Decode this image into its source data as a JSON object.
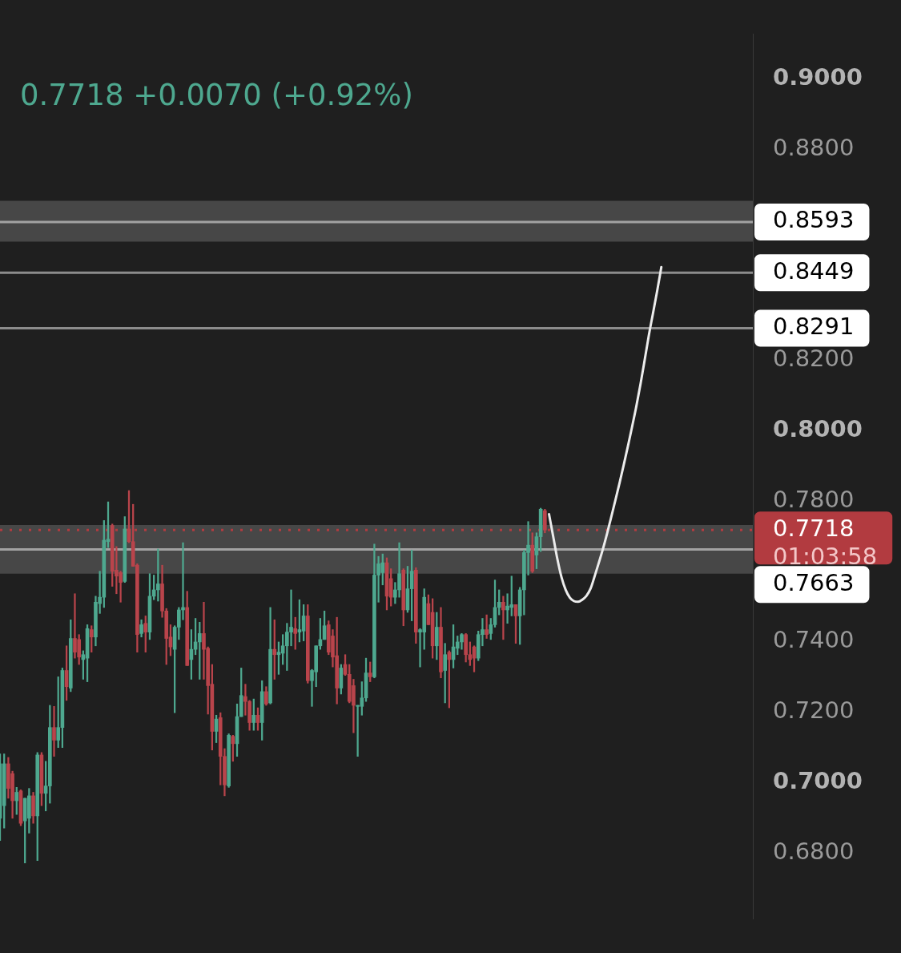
{
  "chart_data": {
    "type": "candlestick",
    "subtitle": "0.7718 +0.0070 (+0.92%)",
    "categories": [
      null,
      null,
      null,
      null,
      null,
      null,
      null,
      null,
      null,
      null,
      null,
      null,
      null,
      null,
      null,
      null,
      null,
      null,
      null,
      null,
      null,
      null,
      null,
      null,
      null,
      null,
      null,
      null,
      null,
      null,
      null,
      null,
      null,
      null,
      null,
      null,
      null,
      null,
      null,
      null,
      null,
      null,
      null,
      null,
      null,
      null,
      null,
      null,
      null,
      null,
      null,
      null,
      null,
      null,
      null,
      null,
      null,
      null,
      null,
      null,
      null,
      null,
      null,
      null,
      null,
      null,
      null,
      null,
      null,
      null,
      null,
      null,
      null,
      null,
      null,
      null,
      null,
      null,
      null,
      null,
      null,
      null,
      null,
      null,
      null,
      null,
      null,
      null,
      null,
      null,
      null,
      null,
      null,
      null,
      null,
      null,
      null,
      null,
      null,
      null,
      null,
      null,
      null,
      null,
      null,
      null,
      null,
      null,
      null,
      null,
      null,
      null,
      null,
      null,
      null,
      null,
      null,
      null,
      null,
      null,
      null,
      null,
      null,
      null,
      null,
      null,
      null,
      null,
      null,
      null,
      null,
      null,
      null,
      null,
      null,
      null,
      null,
      null,
      null,
      null,
      null,
      null,
      null,
      null,
      null,
      null,
      null,
      null,
      null,
      null,
      null,
      null,
      null,
      null,
      null,
      null,
      null,
      null,
      null,
      null,
      null,
      null,
      null,
      null,
      null,
      null,
      null,
      null,
      null,
      null,
      null,
      null,
      null,
      null,
      null,
      null,
      null,
      null,
      null,
      null,
      null,
      null
    ],
    "ohlc": [
      [
        0.6899,
        0.7082,
        0.6836,
        0.7054
      ],
      [
        0.6935,
        0.7082,
        0.6871,
        0.7054
      ],
      [
        0.7054,
        0.7072,
        0.6956,
        0.6984
      ],
      [
        0.7026,
        0.7033,
        0.6899,
        0.6949
      ],
      [
        0.6949,
        0.6987,
        0.691,
        0.6973
      ],
      [
        0.6977,
        0.698,
        0.6878,
        0.6885
      ],
      [
        0.6892,
        0.6956,
        0.6772,
        0.6956
      ],
      [
        0.6899,
        0.6984,
        0.6857,
        0.6963
      ],
      [
        0.6963,
        0.6973,
        0.6885,
        0.6906
      ],
      [
        0.6906,
        0.7086,
        0.6779,
        0.7079
      ],
      [
        0.7079,
        0.7086,
        0.6935,
        0.697
      ],
      [
        0.697,
        0.7061,
        0.692,
        0.6991
      ],
      [
        0.6991,
        0.722,
        0.6942,
        0.7157
      ],
      [
        0.7157,
        0.7217,
        0.7075,
        0.7121
      ],
      [
        0.7121,
        0.7301,
        0.71,
        0.7157
      ],
      [
        0.7157,
        0.7326,
        0.71,
        0.7319
      ],
      [
        0.7319,
        0.7389,
        0.7234,
        0.7273
      ],
      [
        0.7269,
        0.7463,
        0.7259,
        0.741
      ],
      [
        0.741,
        0.7537,
        0.7354,
        0.7371
      ],
      [
        0.7407,
        0.7421,
        0.7336,
        0.7357
      ],
      [
        0.735,
        0.7375,
        0.7294,
        0.7364
      ],
      [
        0.7354,
        0.7449,
        0.7287,
        0.7438
      ],
      [
        0.7435,
        0.7446,
        0.7371,
        0.7414
      ],
      [
        0.7414,
        0.753,
        0.7389,
        0.7513
      ],
      [
        0.7509,
        0.7601,
        0.7481,
        0.7527
      ],
      [
        0.7527,
        0.7745,
        0.7498,
        0.7689
      ],
      [
        0.7685,
        0.7798,
        0.7668,
        0.7692
      ],
      [
        0.7731,
        0.7735,
        0.7558,
        0.7601
      ],
      [
        0.7604,
        0.7671,
        0.7537,
        0.7587
      ],
      [
        0.7597,
        0.7601,
        0.7513,
        0.7569
      ],
      [
        0.7572,
        0.7756,
        0.7569,
        0.7721
      ],
      [
        0.7721,
        0.783,
        0.7682,
        0.7685
      ],
      [
        0.7685,
        0.7791,
        0.7615,
        0.7615
      ],
      [
        0.7618,
        0.7622,
        0.7371,
        0.7421
      ],
      [
        0.7424,
        0.7463,
        0.7414,
        0.7449
      ],
      [
        0.7453,
        0.7474,
        0.7371,
        0.7428
      ],
      [
        0.7428,
        0.7594,
        0.7407,
        0.753
      ],
      [
        0.753,
        0.759,
        0.752,
        0.7548
      ],
      [
        0.7548,
        0.7664,
        0.7516,
        0.7565
      ],
      [
        0.7565,
        0.7618,
        0.747,
        0.7488
      ],
      [
        0.7488,
        0.7495,
        0.7336,
        0.741
      ],
      [
        0.7414,
        0.7449,
        0.7361,
        0.7386
      ],
      [
        0.7379,
        0.7446,
        0.7199,
        0.7442
      ],
      [
        0.7442,
        0.7498,
        0.7407,
        0.7491
      ],
      [
        0.7491,
        0.7682,
        0.7463,
        0.7498
      ],
      [
        0.7498,
        0.7544,
        0.7333,
        0.7333
      ],
      [
        0.735,
        0.7435,
        0.7294,
        0.7379
      ],
      [
        0.7379,
        0.7467,
        0.7364,
        0.74
      ],
      [
        0.74,
        0.7456,
        0.7294,
        0.7424
      ],
      [
        0.7424,
        0.7513,
        0.7294,
        0.7379
      ],
      [
        0.7382,
        0.7386,
        0.7195,
        0.7276
      ],
      [
        0.728,
        0.7336,
        0.7093,
        0.7146
      ],
      [
        0.7146,
        0.7192,
        0.7114,
        0.7181
      ],
      [
        0.7185,
        0.7199,
        0.6994,
        0.7075
      ],
      [
        0.7075,
        0.7097,
        0.6963,
        0.6994
      ],
      [
        0.6991,
        0.7139,
        0.6987,
        0.7135
      ],
      [
        0.7132,
        0.7135,
        0.7061,
        0.7111
      ],
      [
        0.7111,
        0.7224,
        0.7075,
        0.7188
      ],
      [
        0.7188,
        0.7326,
        0.7188,
        0.7248
      ],
      [
        0.7245,
        0.728,
        0.7192,
        0.7231
      ],
      [
        0.7231,
        0.7234,
        0.7149,
        0.7171
      ],
      [
        0.7171,
        0.7238,
        0.7149,
        0.7192
      ],
      [
        0.7192,
        0.7213,
        0.7149,
        0.7171
      ],
      [
        0.7171,
        0.729,
        0.7121,
        0.7259
      ],
      [
        0.7259,
        0.7273,
        0.722,
        0.7224
      ],
      [
        0.7227,
        0.7498,
        0.7224,
        0.7379
      ],
      [
        0.7379,
        0.7463,
        0.7294,
        0.7364
      ],
      [
        0.7364,
        0.74,
        0.7308,
        0.7371
      ],
      [
        0.7368,
        0.7421,
        0.7336,
        0.7389
      ],
      [
        0.7389,
        0.7453,
        0.7319,
        0.7428
      ],
      [
        0.7428,
        0.7548,
        0.7389,
        0.7442
      ],
      [
        0.7438,
        0.747,
        0.7379,
        0.7424
      ],
      [
        0.7428,
        0.752,
        0.74,
        0.7435
      ],
      [
        0.7431,
        0.7506,
        0.7403,
        0.7474
      ],
      [
        0.7474,
        0.7506,
        0.7283,
        0.729
      ],
      [
        0.729,
        0.7322,
        0.7217,
        0.7319
      ],
      [
        0.7315,
        0.7389,
        0.7273,
        0.7389
      ],
      [
        0.7389,
        0.7467,
        0.7379,
        0.7407
      ],
      [
        0.7407,
        0.7488,
        0.7407,
        0.7446
      ],
      [
        0.7449,
        0.746,
        0.7364,
        0.7371
      ],
      [
        0.7417,
        0.7435,
        0.7329,
        0.7357
      ],
      [
        0.7361,
        0.747,
        0.7224,
        0.7269
      ],
      [
        0.7269,
        0.7336,
        0.7252,
        0.7326
      ],
      [
        0.7336,
        0.7364,
        0.7305,
        0.7308
      ],
      [
        0.7308,
        0.7336,
        0.7227,
        0.7231
      ],
      [
        0.7276,
        0.7294,
        0.7142,
        0.722
      ],
      [
        0.7217,
        0.722,
        0.7075,
        0.722
      ],
      [
        0.7217,
        0.7287,
        0.7192,
        0.7241
      ],
      [
        0.7241,
        0.7354,
        0.7231,
        0.7312
      ],
      [
        0.7312,
        0.7343,
        0.7287,
        0.7301
      ],
      [
        0.7301,
        0.7678,
        0.7298,
        0.759
      ],
      [
        0.759,
        0.7643,
        0.7513,
        0.7622
      ],
      [
        0.7597,
        0.765,
        0.7562,
        0.7625
      ],
      [
        0.7625,
        0.7639,
        0.7491,
        0.753
      ],
      [
        0.758,
        0.7608,
        0.7502,
        0.7527
      ],
      [
        0.7527,
        0.7569,
        0.7509,
        0.7548
      ],
      [
        0.7548,
        0.7682,
        0.7527,
        0.7594
      ],
      [
        0.7604,
        0.7608,
        0.7446,
        0.7491
      ],
      [
        0.7491,
        0.7615,
        0.7484,
        0.7551
      ],
      [
        0.7551,
        0.7661,
        0.746,
        0.7601
      ],
      [
        0.7604,
        0.7611,
        0.7396,
        0.7428
      ],
      [
        0.7428,
        0.7438,
        0.7329,
        0.7435
      ],
      [
        0.7428,
        0.7551,
        0.7379,
        0.7527
      ],
      [
        0.7509,
        0.7534,
        0.7449,
        0.7449
      ],
      [
        0.7484,
        0.7523,
        0.7354,
        0.7389
      ],
      [
        0.7389,
        0.7484,
        0.735,
        0.7442
      ],
      [
        0.7442,
        0.7498,
        0.7298,
        0.7315
      ],
      [
        0.7319,
        0.7396,
        0.7227,
        0.7364
      ],
      [
        0.7371,
        0.7375,
        0.7213,
        0.735
      ],
      [
        0.735,
        0.7449,
        0.7326,
        0.7386
      ],
      [
        0.7382,
        0.7417,
        0.7364,
        0.74
      ],
      [
        0.74,
        0.7424,
        0.7379,
        0.7421
      ],
      [
        0.7421,
        0.7424,
        0.7343,
        0.7364
      ],
      [
        0.7364,
        0.74,
        0.7333,
        0.735
      ],
      [
        0.7386,
        0.7389,
        0.7315,
        0.7354
      ],
      [
        0.7354,
        0.7431,
        0.7347,
        0.7421
      ],
      [
        0.7421,
        0.7467,
        0.7389,
        0.7435
      ],
      [
        0.7435,
        0.7477,
        0.741,
        0.7421
      ],
      [
        0.7424,
        0.7467,
        0.7407,
        0.7449
      ],
      [
        0.7449,
        0.7576,
        0.7442,
        0.7498
      ],
      [
        0.7498,
        0.7548,
        0.7477,
        0.7513
      ],
      [
        0.7513,
        0.753,
        0.7407,
        0.7491
      ],
      [
        0.7491,
        0.7537,
        0.7453,
        0.7502
      ],
      [
        0.7498,
        0.7587,
        0.7474,
        0.7506
      ],
      [
        0.7506,
        0.7506,
        0.7396,
        0.7474
      ],
      [
        0.7474,
        0.7555,
        0.7393,
        0.7548
      ],
      [
        0.7548,
        0.7661,
        0.7477,
        0.7654
      ],
      [
        0.7654,
        0.7742,
        0.759,
        0.7675
      ],
      [
        0.7675,
        0.771,
        0.7597,
        0.7601
      ],
      [
        0.7647,
        0.771,
        0.7608,
        0.7699
      ],
      [
        0.7699,
        0.778,
        0.7657,
        0.7777
      ],
      [
        0.7773,
        0.7777,
        0.771,
        0.7718
      ],
      null,
      null,
      null,
      null,
      null,
      null,
      null,
      null,
      null,
      null,
      null,
      null,
      null,
      null,
      null,
      null,
      null,
      null,
      null,
      null,
      null,
      null,
      null,
      null,
      null,
      null,
      null,
      null,
      null,
      null,
      null,
      null,
      null,
      null,
      null,
      null,
      null,
      null,
      null,
      null,
      null,
      null,
      null,
      null,
      null,
      null,
      null,
      null,
      null,
      null
    ],
    "colors": [
      "#4ea88f",
      "#4ea88f",
      "#b9444b",
      "#b9444b",
      "#4ea88f",
      "#b9444b",
      "#4ea88f",
      "#4ea88f",
      "#b9444b",
      "#4ea88f",
      "#b9444b",
      "#4ea88f",
      "#4ea88f",
      "#b9444b",
      "#4ea88f",
      "#4ea88f",
      "#b9444b",
      "#4ea88f",
      "#b9444b",
      "#b9444b",
      "#4ea88f",
      "#4ea88f",
      "#b9444b",
      "#4ea88f",
      "#4ea88f",
      "#4ea88f",
      "#4ea88f",
      "#b9444b",
      "#b9444b",
      "#b9444b",
      "#4ea88f",
      "#b9444b",
      "#b9444b",
      "#b9444b",
      "#4ea88f",
      "#b9444b",
      "#4ea88f",
      "#4ea88f",
      "#4ea88f",
      "#b9444b",
      "#b9444b",
      "#b9444b",
      "#4ea88f",
      "#4ea88f",
      "#4ea88f",
      "#b9444b",
      "#4ea88f",
      "#4ea88f",
      "#4ea88f",
      "#b9444b",
      "#b9444b",
      "#b9444b",
      "#4ea88f",
      "#b9444b",
      "#b9444b",
      "#4ea88f",
      "#b9444b",
      "#4ea88f",
      "#4ea88f",
      "#b9444b",
      "#b9444b",
      "#4ea88f",
      "#b9444b",
      "#4ea88f",
      "#b9444b",
      "#4ea88f",
      "#b9444b",
      "#4ea88f",
      "#4ea88f",
      "#4ea88f",
      "#4ea88f",
      "#b9444b",
      "#4ea88f",
      "#4ea88f",
      "#b9444b",
      "#4ea88f",
      "#4ea88f",
      "#4ea88f",
      "#4ea88f",
      "#b9444b",
      "#b9444b",
      "#b9444b",
      "#4ea88f",
      "#b9444b",
      "#b9444b",
      "#b9444b",
      "#4ea88f",
      "#4ea88f",
      "#4ea88f",
      "#b9444b",
      "#4ea88f",
      "#4ea88f",
      "#4ea88f",
      "#b9444b",
      "#b9444b",
      "#4ea88f",
      "#4ea88f",
      "#b9444b",
      "#4ea88f",
      "#4ea88f",
      "#b9444b",
      "#4ea88f",
      "#4ea88f",
      "#b9444b",
      "#b9444b",
      "#4ea88f",
      "#b9444b",
      "#4ea88f",
      "#b9444b",
      "#4ea88f",
      "#4ea88f",
      "#4ea88f",
      "#b9444b",
      "#b9444b",
      "#b9444b",
      "#4ea88f",
      "#4ea88f",
      "#b9444b",
      "#4ea88f",
      "#4ea88f",
      "#4ea88f",
      "#b9444b",
      "#4ea88f",
      "#4ea88f",
      "#b9444b",
      "#4ea88f",
      "#4ea88f",
      "#4ea88f",
      "#b9444b",
      "#4ea88f",
      "#4ea88f",
      "#b9444b",
      null,
      null,
      null,
      null,
      null,
      null,
      null,
      null,
      null,
      null,
      null,
      null,
      null,
      null,
      null,
      null,
      null,
      null,
      null,
      null,
      null,
      null,
      null,
      null,
      null,
      null,
      null,
      null,
      null,
      null,
      null,
      null,
      null,
      null,
      null,
      null,
      null,
      null,
      null,
      null,
      null,
      null,
      null,
      null,
      null,
      null,
      null,
      null,
      null,
      null
    ],
    "series": [
      {
        "type": "line",
        "color": "#ececec",
        "values": [
          null,
          null,
          null,
          null,
          null,
          null,
          null,
          null,
          null,
          null,
          null,
          null,
          null,
          null,
          null,
          null,
          null,
          null,
          null,
          null,
          null,
          null,
          null,
          null,
          null,
          null,
          null,
          null,
          null,
          null,
          null,
          null,
          null,
          null,
          null,
          null,
          null,
          null,
          null,
          null,
          null,
          null,
          null,
          null,
          null,
          null,
          null,
          null,
          null,
          null,
          null,
          null,
          null,
          null,
          null,
          null,
          null,
          null,
          null,
          null,
          null,
          null,
          null,
          null,
          null,
          null,
          null,
          null,
          null,
          null,
          null,
          null,
          null,
          null,
          null,
          null,
          null,
          null,
          null,
          null,
          null,
          null,
          null,
          null,
          null,
          null,
          null,
          null,
          null,
          null,
          null,
          null,
          null,
          null,
          null,
          null,
          null,
          null,
          null,
          null,
          null,
          null,
          null,
          null,
          null,
          null,
          null,
          null,
          null,
          null,
          null,
          null,
          null,
          null,
          null,
          null,
          null,
          null,
          null,
          null,
          null,
          null,
          null,
          null,
          null,
          null,
          null,
          null,
          null,
          null,
          null,
          null,
          0.7763,
          0.77,
          0.7636,
          0.7584,
          0.7548,
          0.7526,
          0.7516,
          0.7514,
          0.752,
          0.7531,
          0.7552,
          0.7588,
          0.7626,
          0.7666,
          0.771,
          0.7757,
          0.7805,
          0.7854,
          0.7905,
          0.7958,
          0.8013,
          0.807,
          0.8133,
          0.8201,
          0.8271,
          0.8334,
          0.8397,
          0.8465,
          null,
          null,
          null,
          null,
          null,
          null,
          null,
          null,
          null,
          null,
          null,
          null,
          null,
          null,
          null,
          null,
          null,
          null,
          null,
          null,
          null,
          null
        ]
      }
    ],
    "ylim": [
      0.6613,
      0.9127
    ],
    "yticks": [
      {
        "value": 0.68,
        "label": "0.6800"
      },
      {
        "value": 0.7,
        "label": "0.7000"
      },
      {
        "value": 0.72,
        "label": "0.7200"
      },
      {
        "value": 0.74,
        "label": "0.7400"
      },
      {
        "value": 0.78,
        "label": "0.7800"
      },
      {
        "value": 0.8,
        "label": "0.8000"
      },
      {
        "value": 0.82,
        "label": "0.8200"
      },
      {
        "value": 0.88,
        "label": "0.8800"
      },
      {
        "value": 0.9,
        "label": "0.9000"
      }
    ],
    "bands": [
      {
        "axis": "y",
        "from": 0.8537,
        "to": 0.8653,
        "color": "#474747"
      },
      {
        "axis": "y",
        "from": 0.7594,
        "to": 0.7732,
        "color": "#474747"
      }
    ],
    "ref_lines": [
      {
        "axis": "y",
        "value": 0.8593,
        "label": "0.8593",
        "color": "#a3a3a3"
      },
      {
        "axis": "y",
        "value": 0.8449,
        "label": "0.8449",
        "color": "#8c8c8c"
      },
      {
        "axis": "y",
        "value": 0.8291,
        "label": "0.8291",
        "color": "#8c8c8c"
      },
      {
        "axis": "y",
        "value": 0.7718,
        "label": "0.7718",
        "color": "#b23b40",
        "line_style": "dotted"
      },
      {
        "axis": "y",
        "value": 0.7663,
        "label": "0.7663",
        "color": "#a3a3a3"
      }
    ],
    "annotations": [
      "01:03:58"
    ],
    "marker": "none",
    "tick_labels": "y"
  }
}
